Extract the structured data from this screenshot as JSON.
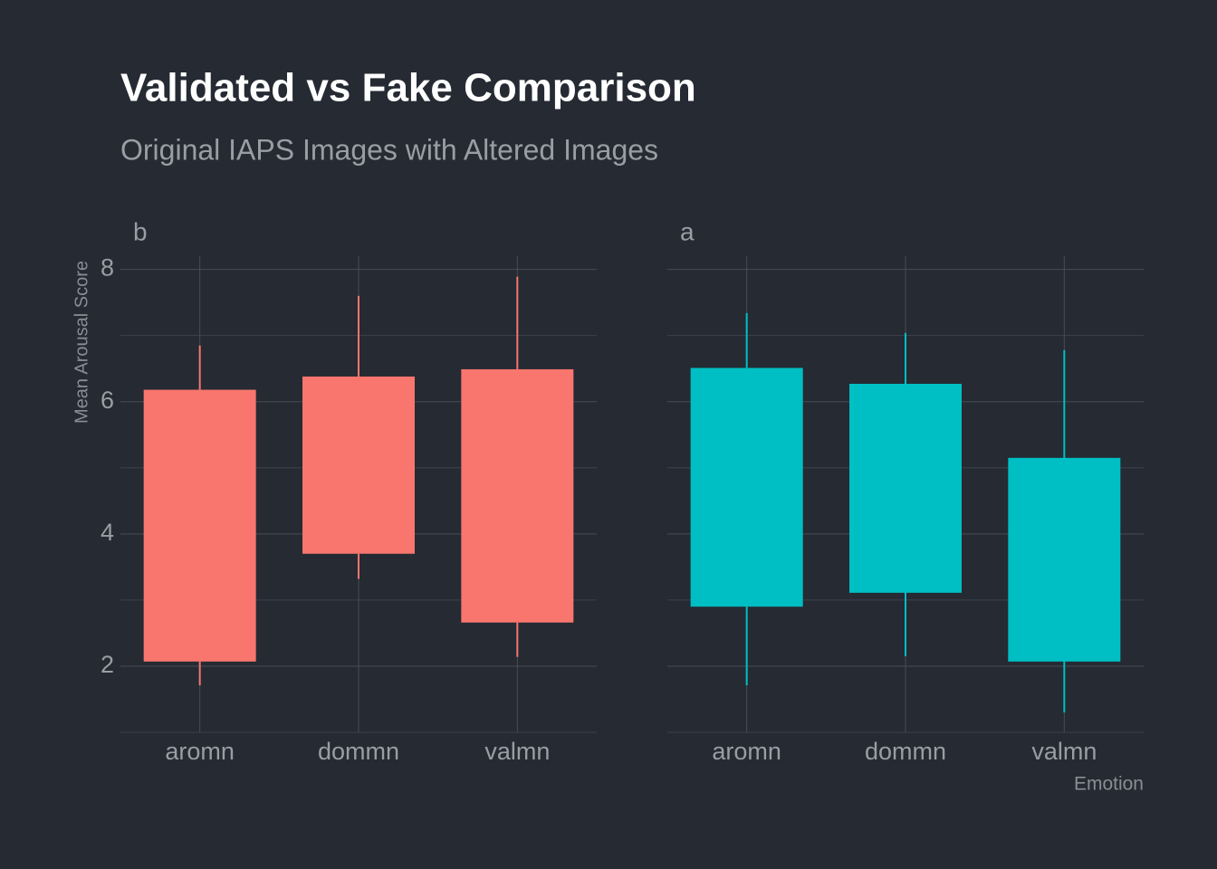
{
  "chart_data": {
    "type": "box",
    "title": "Validated vs Fake Comparison",
    "subtitle": "Original IAPS Images with Altered Images",
    "y_label": "Mean Arousal Score",
    "x_label": "Emotion",
    "ylim": [
      1.0,
      8.2
    ],
    "yticks": [
      2,
      4,
      6,
      8
    ],
    "minor_yticks": [
      1,
      3,
      5,
      7
    ],
    "grid": true,
    "categories": [
      "aromn",
      "dommn",
      "valmn"
    ],
    "panels": [
      {
        "name": "b",
        "color": "#f8766d",
        "low": [
          1.71,
          3.32,
          2.14
        ],
        "q1": [
          2.07,
          3.7,
          2.66
        ],
        "q3": [
          6.18,
          6.38,
          6.49
        ],
        "high": [
          6.85,
          7.6,
          7.89
        ]
      },
      {
        "name": "a",
        "color": "#00bfc4",
        "low": [
          1.71,
          2.15,
          1.3
        ],
        "q1": [
          2.9,
          3.11,
          2.07
        ],
        "q3": [
          6.51,
          6.27,
          5.15
        ],
        "high": [
          7.34,
          7.04,
          6.78
        ]
      }
    ]
  }
}
